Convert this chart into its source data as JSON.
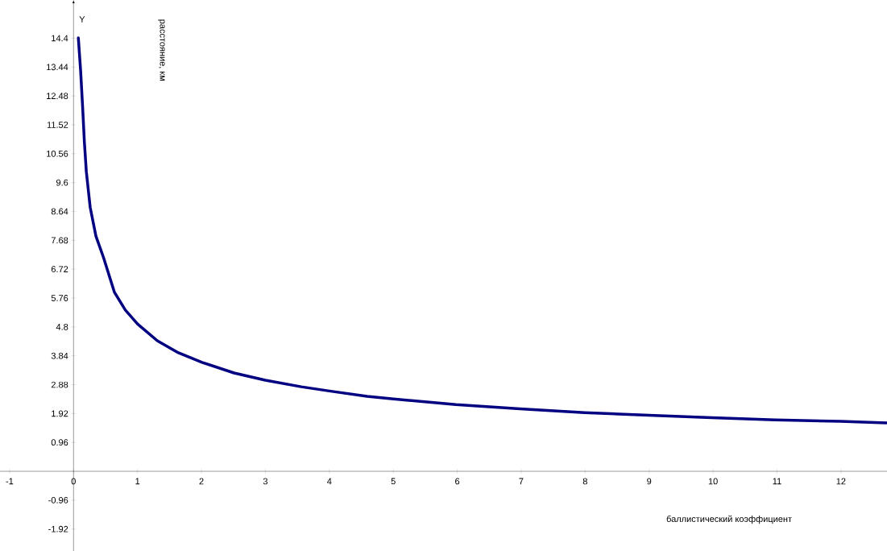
{
  "chart_data": {
    "type": "line",
    "xlabel": "баллистический коэффициент",
    "ylabel": "расстояние, км",
    "annotations": [
      "Y"
    ],
    "x": [
      0.075,
      0.11,
      0.14,
      0.17,
      0.2,
      0.26,
      0.35,
      0.47,
      0.64,
      0.81,
      1.0,
      1.31,
      1.64,
      2.01,
      2.51,
      3.0,
      3.56,
      4.0,
      4.59,
      4.97,
      5.98,
      6.98,
      7.99,
      9.0,
      9.98,
      10.97,
      11.99,
      12.71
    ],
    "series": [
      {
        "color": "#000080",
        "values": [
          14.41,
          13.34,
          12.19,
          10.93,
          9.96,
          8.78,
          7.82,
          7.1,
          5.95,
          5.36,
          4.9,
          4.34,
          3.94,
          3.62,
          3.27,
          3.03,
          2.81,
          2.67,
          2.49,
          2.41,
          2.22,
          2.08,
          1.95,
          1.86,
          1.78,
          1.71,
          1.66,
          1.61
        ]
      }
    ],
    "xlim": [
      -1.15,
      12.72
    ],
    "ylim": [
      -2.65,
      15.67
    ],
    "xticks": [
      -1,
      0,
      1,
      2,
      3,
      4,
      5,
      6,
      7,
      8,
      9,
      10,
      11,
      12
    ],
    "yticks": [
      -1.92,
      -0.96,
      0.96,
      1.92,
      2.88,
      3.84,
      4.8,
      5.76,
      6.72,
      7.68,
      8.64,
      9.6,
      10.56,
      11.52,
      12.48,
      13.44,
      14.4
    ],
    "line_style": "solid"
  }
}
